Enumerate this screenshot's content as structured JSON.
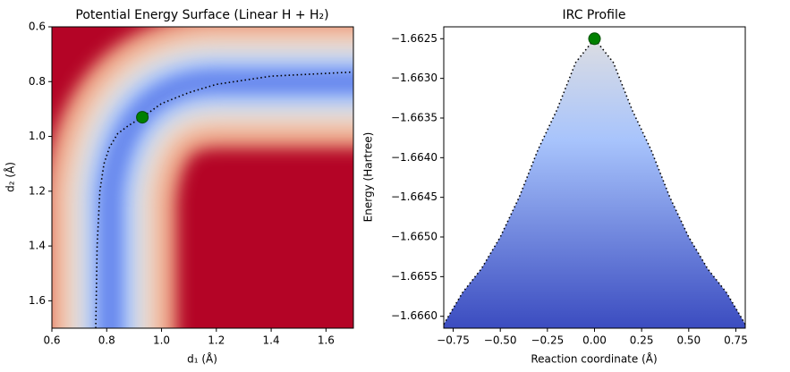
{
  "chart_data": [
    {
      "type": "heatmap",
      "title": "Potential Energy Surface (Linear H + H₂)",
      "xlabel": "d₁ (Å)",
      "ylabel": "d₂ (Å)",
      "colormap": "coolwarm",
      "xlim": [
        0.6,
        1.7
      ],
      "ylim": [
        1.7,
        0.6
      ],
      "xticks": [
        0.6,
        0.8,
        {
          "value": 1,
          "label": "1.0"
        },
        1.2,
        1.4,
        1.6
      ],
      "yticks": [
        0.6,
        0.8,
        {
          "value": 1,
          "label": "1.0"
        },
        1.2,
        1.4,
        1.6
      ],
      "path": {
        "x": [
          0.76,
          0.765,
          0.775,
          0.79,
          0.81,
          0.84,
          0.88,
          0.93,
          1.0,
          1.1,
          1.2,
          1.4,
          1.7
        ],
        "y": [
          1.7,
          1.4,
          1.2,
          1.1,
          1.04,
          0.99,
          0.96,
          0.93,
          0.88,
          0.84,
          0.81,
          0.78,
          0.765
        ]
      },
      "point": {
        "x": 0.93,
        "y": 0.93,
        "color": "#008000"
      }
    },
    {
      "type": "area",
      "title": "IRC Profile",
      "xlabel": "Reaction coordinate (Å)",
      "ylabel": "Energy (Hartree)",
      "x": [
        -0.8,
        -0.7,
        -0.6,
        -0.5,
        -0.4,
        -0.3,
        -0.2,
        -0.1,
        0,
        0.1,
        0.2,
        0.3,
        0.4,
        0.5,
        0.6,
        0.7,
        0.8
      ],
      "values": [
        -1.6661,
        -1.6657,
        -1.6654,
        -1.665,
        -1.6645,
        -1.6639,
        -1.6634,
        -1.6628,
        -1.6625,
        -1.6628,
        -1.6634,
        -1.6639,
        -1.6645,
        -1.665,
        -1.6654,
        -1.6657,
        -1.6661
      ],
      "xlim": [
        -0.8,
        0.8
      ],
      "ylim": [
        -1.66615,
        -1.66235
      ],
      "xticks": [
        {
          "value": -0.75,
          "label": "−0.75"
        },
        {
          "value": -0.5,
          "label": "−0.50"
        },
        {
          "value": -0.25,
          "label": "−0.25"
        },
        {
          "value": 0,
          "label": "0.00"
        },
        {
          "value": 0.25,
          "label": "0.25"
        },
        {
          "value": 0.5,
          "label": "0.50"
        },
        {
          "value": 0.75,
          "label": "0.75"
        }
      ],
      "yticks": [
        {
          "value": -1.6625,
          "label": "−1.6625"
        },
        {
          "value": -1.663,
          "label": "−1.6630"
        },
        {
          "value": -1.6635,
          "label": "−1.6635"
        },
        {
          "value": -1.664,
          "label": "−1.6640"
        },
        {
          "value": -1.6645,
          "label": "−1.6645"
        },
        {
          "value": -1.665,
          "label": "−1.6650"
        },
        {
          "value": -1.6655,
          "label": "−1.6655"
        },
        {
          "value": -1.666,
          "label": "−1.6660"
        }
      ],
      "point": {
        "x": 0,
        "y": -1.6625,
        "color": "#008000"
      }
    }
  ]
}
